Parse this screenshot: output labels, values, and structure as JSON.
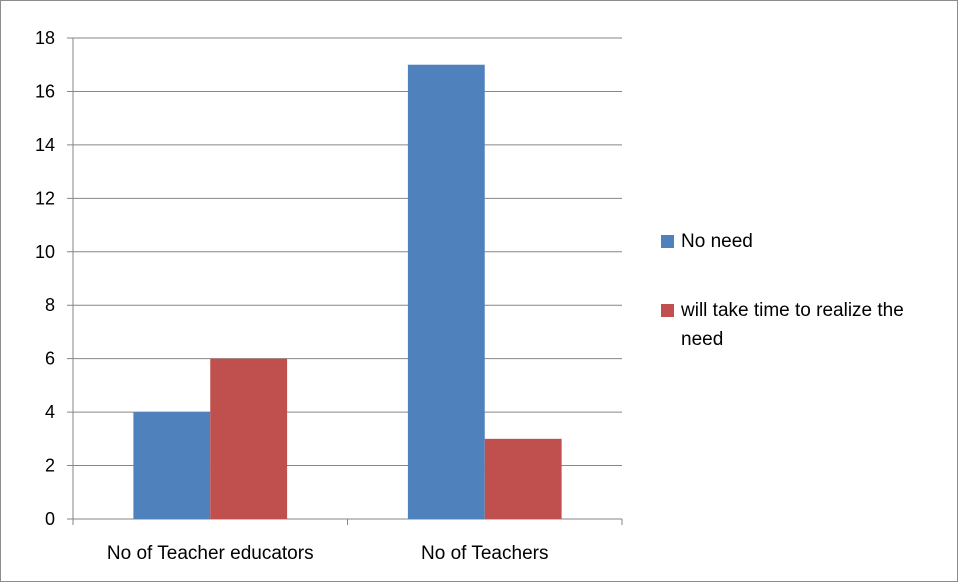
{
  "chart_data": {
    "type": "bar",
    "categories": [
      "No of Teacher educators",
      "No of Teachers"
    ],
    "series": [
      {
        "name": "No need",
        "values": [
          4,
          17
        ],
        "color": "#4F81BD"
      },
      {
        "name": "will take time to realize the need",
        "values": [
          6,
          3
        ],
        "color": "#C0504D"
      }
    ],
    "y_ticks": [
      "0",
      "2",
      "4",
      "6",
      "8",
      "10",
      "12",
      "14",
      "16",
      "18"
    ],
    "ylim": [
      0,
      18
    ],
    "grid": true,
    "legend_position": "right"
  }
}
